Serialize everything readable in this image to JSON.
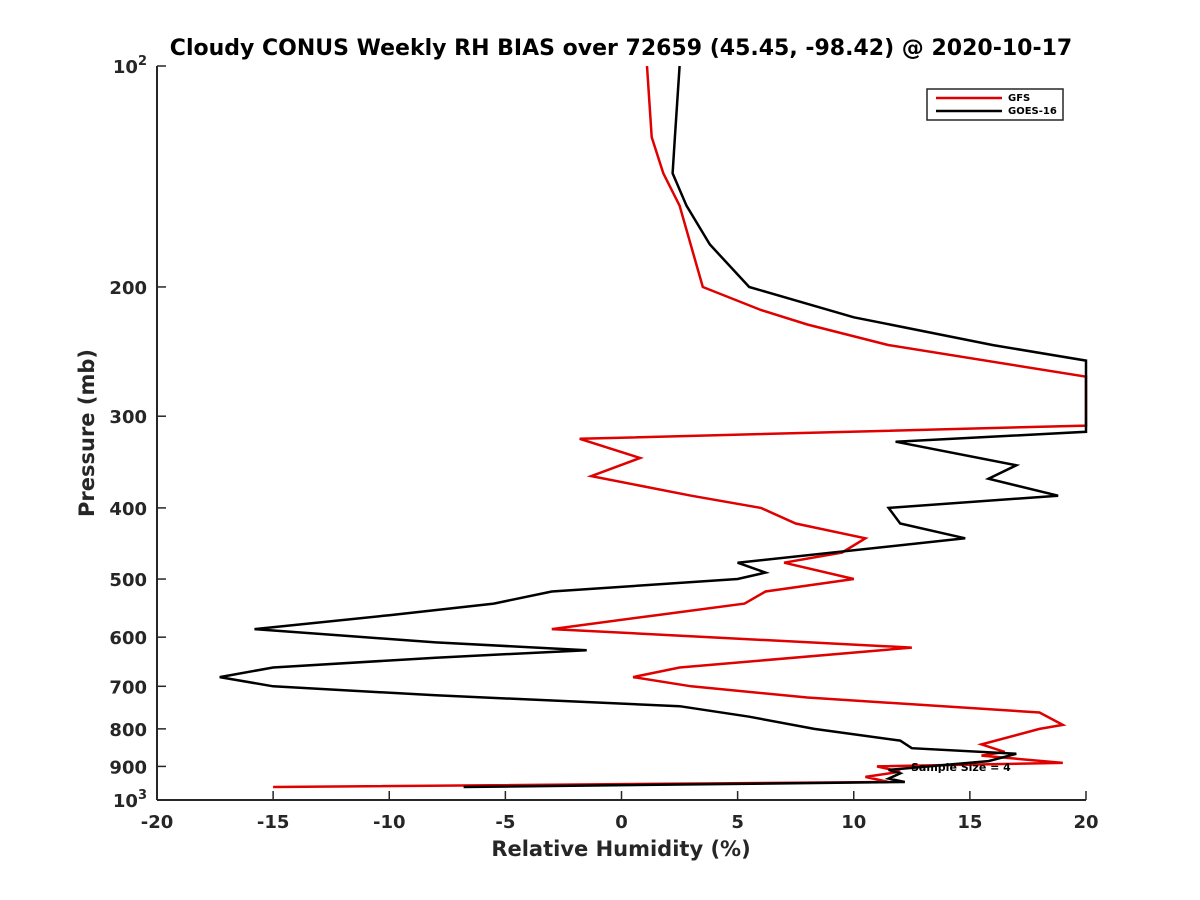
{
  "chart_data": {
    "type": "line",
    "title": "Cloudy CONUS Weekly RH BIAS over 72659 (45.45, -98.42) @ 2020-10-17",
    "xlabel": "Relative Humidity (%)",
    "ylabel": "Pressure (mb)",
    "xlim": [
      -20,
      20
    ],
    "ylim": [
      100,
      1000
    ],
    "y_scale": "log",
    "y_reversed": true,
    "x_ticks": [
      "-20",
      "-15",
      "-10",
      "-5",
      "0",
      "5",
      "10",
      "15",
      "20"
    ],
    "y_ticks": [
      {
        "value": 100,
        "base": "10",
        "exp": "2"
      },
      {
        "value": 200,
        "label": "200"
      },
      {
        "value": 300,
        "label": "300"
      },
      {
        "value": 400,
        "label": "400"
      },
      {
        "value": 500,
        "label": "500"
      },
      {
        "value": 600,
        "label": "600"
      },
      {
        "value": 700,
        "label": "700"
      },
      {
        "value": 800,
        "label": "800"
      },
      {
        "value": 900,
        "label": "900"
      },
      {
        "value": 1000,
        "base": "10",
        "exp": "3"
      }
    ],
    "grid": false,
    "legend_position": "top-right",
    "annotation": "Sample Size = 4",
    "series": [
      {
        "name": "GFS",
        "color": "#e00000",
        "points": [
          [
            1.1,
            100
          ],
          [
            1.3,
            125
          ],
          [
            1.8,
            140
          ],
          [
            2.5,
            155
          ],
          [
            3.5,
            200
          ],
          [
            6.0,
            215
          ],
          [
            8.0,
            225
          ],
          [
            11.5,
            240
          ],
          [
            20.0,
            265
          ],
          [
            20.0,
            309
          ],
          [
            -1.8,
            322
          ],
          [
            0.8,
            342
          ],
          [
            -1.3,
            362
          ],
          [
            3.0,
            385
          ],
          [
            6.0,
            400
          ],
          [
            7.5,
            420
          ],
          [
            10.5,
            440
          ],
          [
            9.5,
            460
          ],
          [
            7.0,
            475
          ],
          [
            10.0,
            500
          ],
          [
            6.2,
            520
          ],
          [
            5.3,
            540
          ],
          [
            1.5,
            560
          ],
          [
            -3.0,
            585
          ],
          [
            12.5,
            620
          ],
          [
            2.5,
            660
          ],
          [
            0.5,
            680
          ],
          [
            3.0,
            700
          ],
          [
            8.0,
            725
          ],
          [
            18.0,
            760
          ],
          [
            19.0,
            790
          ],
          [
            18.0,
            800
          ],
          [
            15.5,
            840
          ],
          [
            16.5,
            860
          ],
          [
            15.5,
            870
          ],
          [
            19.0,
            890
          ],
          [
            11.0,
            900
          ],
          [
            12.0,
            915
          ],
          [
            10.5,
            930
          ],
          [
            11.5,
            945
          ],
          [
            -15.0,
            960
          ]
        ]
      },
      {
        "name": "GOES-16",
        "color": "#000000",
        "points": [
          [
            2.5,
            100
          ],
          [
            2.3,
            125
          ],
          [
            2.2,
            140
          ],
          [
            2.8,
            155
          ],
          [
            3.8,
            175
          ],
          [
            5.5,
            200
          ],
          [
            10.0,
            220
          ],
          [
            16.0,
            240
          ],
          [
            20.0,
            252
          ],
          [
            20.0,
            315
          ],
          [
            11.8,
            325
          ],
          [
            17.0,
            350
          ],
          [
            15.8,
            365
          ],
          [
            18.8,
            385
          ],
          [
            11.5,
            400
          ],
          [
            12.0,
            420
          ],
          [
            14.8,
            440
          ],
          [
            5.0,
            475
          ],
          [
            6.2,
            490
          ],
          [
            5.0,
            500
          ],
          [
            -3.0,
            520
          ],
          [
            -5.5,
            540
          ],
          [
            -10.0,
            560
          ],
          [
            -15.8,
            585
          ],
          [
            -8.0,
            610
          ],
          [
            -1.5,
            625
          ],
          [
            -8.0,
            640
          ],
          [
            -15.0,
            660
          ],
          [
            -17.3,
            680
          ],
          [
            -15.0,
            700
          ],
          [
            -8.0,
            720
          ],
          [
            2.5,
            745
          ],
          [
            5.5,
            770
          ],
          [
            8.3,
            800
          ],
          [
            12.0,
            830
          ],
          [
            12.5,
            850
          ],
          [
            17.0,
            865
          ],
          [
            15.8,
            885
          ],
          [
            11.5,
            910
          ],
          [
            12.0,
            920
          ],
          [
            11.5,
            935
          ],
          [
            12.2,
            945
          ],
          [
            -6.8,
            960
          ]
        ]
      }
    ]
  }
}
